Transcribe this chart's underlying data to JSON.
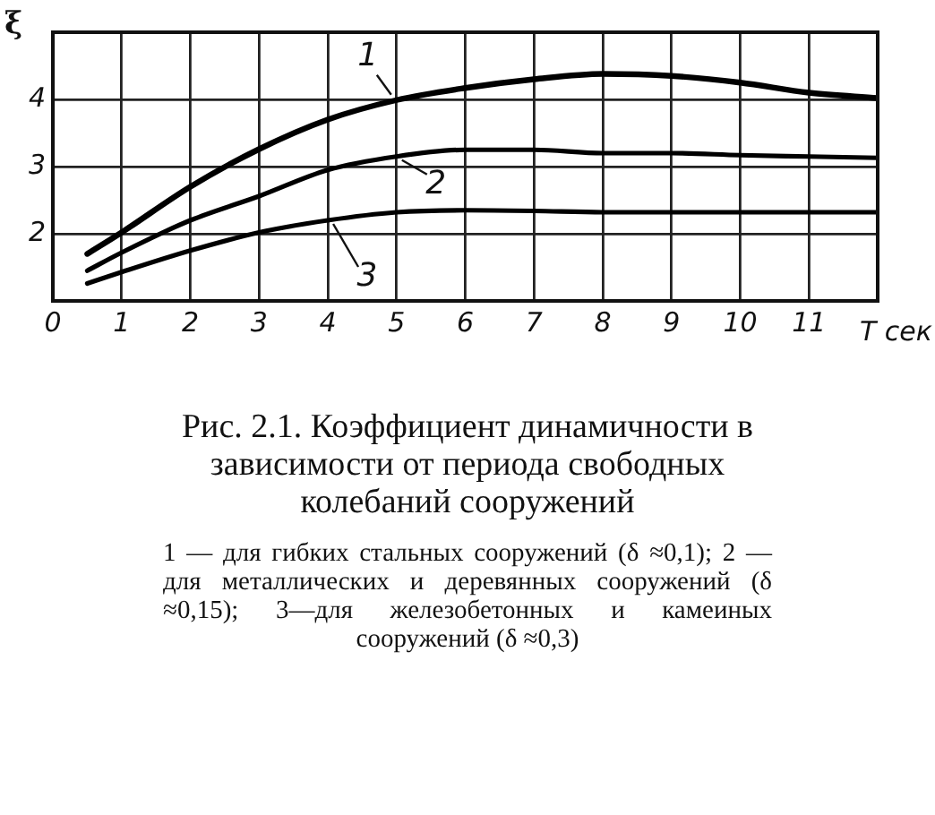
{
  "chart_data": {
    "type": "line",
    "title": "Рис. 2.1. Коэффициент динамичности в зависимости от периода свободных колебаний сооружений",
    "xlabel": "T сек",
    "ylabel": "ξ",
    "x": [
      0.5,
      1,
      2,
      3,
      4,
      5,
      6,
      7,
      8,
      9,
      10,
      11,
      12
    ],
    "series": [
      {
        "name": "1",
        "color": "#000000",
        "values": [
          1.7,
          2.02,
          2.7,
          3.26,
          3.7,
          3.99,
          4.17,
          4.3,
          4.38,
          4.35,
          4.25,
          4.1,
          4.02
        ]
      },
      {
        "name": "2",
        "color": "#000000",
        "values": [
          1.45,
          1.72,
          2.2,
          2.56,
          2.95,
          3.15,
          3.25,
          3.25,
          3.2,
          3.2,
          3.17,
          3.15,
          3.13
        ]
      },
      {
        "name": "3",
        "color": "#000000",
        "values": [
          1.26,
          1.43,
          1.75,
          2.02,
          2.2,
          2.32,
          2.35,
          2.34,
          2.32,
          2.32,
          2.32,
          2.32,
          2.32
        ]
      }
    ],
    "xlim": [
      0,
      12
    ],
    "xticks": [
      0,
      1,
      2,
      3,
      4,
      5,
      6,
      7,
      8,
      9,
      10,
      11,
      {
        "value": 12,
        "label": null
      }
    ],
    "ylim": [
      1,
      5
    ],
    "yticks": [
      {
        "value": 1,
        "label": null
      },
      2,
      3,
      4,
      {
        "value": 5,
        "label": null
      }
    ],
    "grid": true,
    "legend": false,
    "marker": "none",
    "line_style": "solid",
    "annotations": [
      "1 — для гибких стальных сооружений (δ ≈0,1); 2 — для металлических и деревянных сооружений (δ ≈0,15); 3—для железобетонных и камеиных сооружений (δ ≈0,3)"
    ]
  }
}
